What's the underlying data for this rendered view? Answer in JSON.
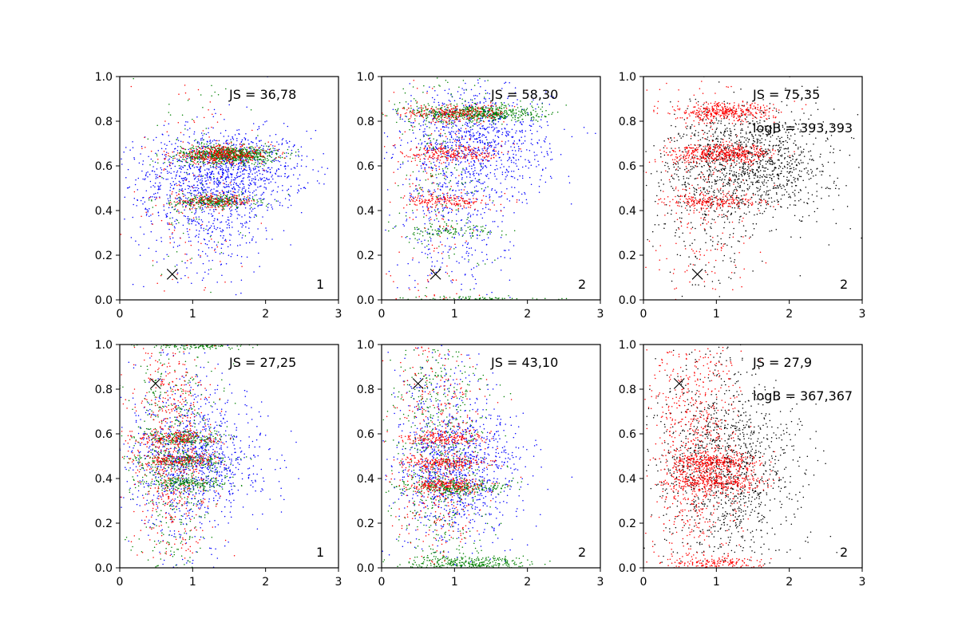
{
  "figure": {
    "rows": 2,
    "cols": 3,
    "xlim": [
      0,
      3
    ],
    "ylim": [
      0,
      1
    ],
    "xticks": [
      0,
      1,
      2,
      3
    ],
    "yticks": [
      0.0,
      0.2,
      0.4,
      0.6,
      0.8,
      1.0
    ],
    "xtick_labels": [
      "0",
      "1",
      "2",
      "3"
    ],
    "ytick_labels": [
      "0.0",
      "0.2",
      "0.4",
      "0.6",
      "0.8",
      "1.0"
    ],
    "colors": {
      "blue": "#0000ff",
      "green": "#008000",
      "red": "#ff0000",
      "black": "#000000"
    }
  },
  "chart_data": [
    {
      "type": "scatter",
      "panel": [
        0,
        0
      ],
      "xlim": [
        0,
        3
      ],
      "ylim": [
        0,
        1
      ],
      "grid": false,
      "annotations": {
        "js": "JS = 36,78",
        "panel_number": "1"
      },
      "marker": {
        "shape": "x",
        "x": 0.72,
        "y": 0.115
      },
      "series": [
        {
          "color": "blue",
          "count": 1500,
          "bands": [
            {
              "y": 0.58,
              "spread_y": 0.09,
              "x": 1.5,
              "spread_x": 0.55,
              "weight": 0.55
            },
            {
              "y": 0.45,
              "spread_y": 0.16,
              "x": 1.2,
              "spread_x": 0.5,
              "weight": 0.45
            }
          ]
        },
        {
          "color": "green",
          "count": 1100,
          "bands": [
            {
              "y": 0.65,
              "spread_y": 0.02,
              "x": 1.5,
              "spread_x": 0.33,
              "weight": 0.65
            },
            {
              "y": 0.44,
              "spread_y": 0.015,
              "x": 1.3,
              "spread_x": 0.28,
              "weight": 0.25
            },
            {
              "y": 0.55,
              "spread_y": 0.25,
              "x": 1.0,
              "spread_x": 0.4,
              "weight": 0.1
            }
          ]
        },
        {
          "color": "red",
          "count": 650,
          "bands": [
            {
              "y": 0.65,
              "spread_y": 0.02,
              "x": 1.4,
              "spread_x": 0.35,
              "weight": 0.55
            },
            {
              "y": 0.44,
              "spread_y": 0.015,
              "x": 1.3,
              "spread_x": 0.3,
              "weight": 0.25
            },
            {
              "y": 0.5,
              "spread_y": 0.3,
              "x": 0.9,
              "spread_x": 0.4,
              "weight": 0.2
            }
          ]
        }
      ]
    },
    {
      "type": "scatter",
      "panel": [
        0,
        1
      ],
      "xlim": [
        0,
        3
      ],
      "ylim": [
        0,
        1
      ],
      "grid": false,
      "annotations": {
        "js": "JS = 58,30",
        "panel_number": "2"
      },
      "marker": {
        "shape": "x",
        "x": 0.74,
        "y": 0.115
      },
      "series": [
        {
          "color": "blue",
          "count": 1300,
          "bands": [
            {
              "y": 0.7,
              "spread_y": 0.13,
              "x": 1.3,
              "spread_x": 0.5,
              "weight": 0.7
            },
            {
              "y": 0.4,
              "spread_y": 0.2,
              "x": 1.0,
              "spread_x": 0.4,
              "weight": 0.3
            }
          ]
        },
        {
          "color": "green",
          "count": 1100,
          "bands": [
            {
              "y": 0.835,
              "spread_y": 0.02,
              "x": 1.3,
              "spread_x": 0.45,
              "weight": 0.55
            },
            {
              "y": 0.0,
              "spread_y": 0.008,
              "x": 1.2,
              "spread_x": 0.45,
              "weight": 0.15
            },
            {
              "y": 0.31,
              "spread_y": 0.015,
              "x": 0.9,
              "spread_x": 0.35,
              "weight": 0.1
            },
            {
              "y": 0.6,
              "spread_y": 0.25,
              "x": 0.8,
              "spread_x": 0.35,
              "weight": 0.2
            }
          ]
        },
        {
          "color": "red",
          "count": 800,
          "bands": [
            {
              "y": 0.835,
              "spread_y": 0.02,
              "x": 1.0,
              "spread_x": 0.35,
              "weight": 0.3
            },
            {
              "y": 0.655,
              "spread_y": 0.02,
              "x": 1.0,
              "spread_x": 0.35,
              "weight": 0.3
            },
            {
              "y": 0.44,
              "spread_y": 0.015,
              "x": 0.9,
              "spread_x": 0.3,
              "weight": 0.2
            },
            {
              "y": 0.5,
              "spread_y": 0.3,
              "x": 0.7,
              "spread_x": 0.3,
              "weight": 0.2
            }
          ]
        }
      ]
    },
    {
      "type": "scatter",
      "panel": [
        0,
        2
      ],
      "xlim": [
        0,
        3
      ],
      "ylim": [
        0,
        1
      ],
      "grid": false,
      "annotations": {
        "js": "JS = 75,35",
        "logb": "logB = 393,393",
        "panel_number": "2"
      },
      "marker": {
        "shape": "x",
        "x": 0.74,
        "y": 0.115
      },
      "series": [
        {
          "color": "black",
          "count": 1500,
          "bands": [
            {
              "y": 0.62,
              "spread_y": 0.12,
              "x": 1.5,
              "spread_x": 0.55,
              "weight": 0.75
            },
            {
              "y": 0.45,
              "spread_y": 0.2,
              "x": 1.0,
              "spread_x": 0.45,
              "weight": 0.25
            }
          ]
        },
        {
          "color": "red",
          "count": 1300,
          "bands": [
            {
              "y": 0.84,
              "spread_y": 0.02,
              "x": 1.1,
              "spread_x": 0.35,
              "weight": 0.3
            },
            {
              "y": 0.655,
              "spread_y": 0.02,
              "x": 1.1,
              "spread_x": 0.35,
              "weight": 0.35
            },
            {
              "y": 0.44,
              "spread_y": 0.015,
              "x": 1.0,
              "spread_x": 0.35,
              "weight": 0.15
            },
            {
              "y": 0.45,
              "spread_y": 0.3,
              "x": 0.8,
              "spread_x": 0.35,
              "weight": 0.2
            }
          ]
        }
      ]
    },
    {
      "type": "scatter",
      "panel": [
        1,
        0
      ],
      "xlim": [
        0,
        3
      ],
      "ylim": [
        0,
        1
      ],
      "grid": false,
      "annotations": {
        "js": "JS = 27,25",
        "panel_number": "1"
      },
      "marker": {
        "shape": "x",
        "x": 0.49,
        "y": 0.825
      },
      "series": [
        {
          "color": "blue",
          "count": 1200,
          "bands": [
            {
              "y": 0.48,
              "spread_y": 0.12,
              "x": 1.1,
              "spread_x": 0.45,
              "weight": 0.6
            },
            {
              "y": 0.5,
              "spread_y": 0.28,
              "x": 0.9,
              "spread_x": 0.4,
              "weight": 0.4
            }
          ]
        },
        {
          "color": "green",
          "count": 1300,
          "bands": [
            {
              "y": 1.0,
              "spread_y": 0.01,
              "x": 1.0,
              "spread_x": 0.35,
              "weight": 0.15
            },
            {
              "y": 0.58,
              "spread_y": 0.015,
              "x": 0.9,
              "spread_x": 0.3,
              "weight": 0.15
            },
            {
              "y": 0.48,
              "spread_y": 0.015,
              "x": 0.9,
              "spread_x": 0.3,
              "weight": 0.15
            },
            {
              "y": 0.38,
              "spread_y": 0.015,
              "x": 0.9,
              "spread_x": 0.3,
              "weight": 0.15
            },
            {
              "y": 0.5,
              "spread_y": 0.3,
              "x": 0.75,
              "spread_x": 0.3,
              "weight": 0.4
            }
          ]
        },
        {
          "color": "red",
          "count": 900,
          "bands": [
            {
              "y": 0.58,
              "spread_y": 0.015,
              "x": 0.8,
              "spread_x": 0.3,
              "weight": 0.15
            },
            {
              "y": 0.48,
              "spread_y": 0.015,
              "x": 0.8,
              "spread_x": 0.3,
              "weight": 0.15
            },
            {
              "y": 0.5,
              "spread_y": 0.3,
              "x": 0.7,
              "spread_x": 0.28,
              "weight": 0.7
            }
          ]
        }
      ]
    },
    {
      "type": "scatter",
      "panel": [
        1,
        1
      ],
      "xlim": [
        0,
        3
      ],
      "ylim": [
        0,
        1
      ],
      "grid": false,
      "annotations": {
        "js": "JS = 43,10",
        "panel_number": "2"
      },
      "marker": {
        "shape": "x",
        "x": 0.5,
        "y": 0.825
      },
      "series": [
        {
          "color": "blue",
          "count": 1200,
          "bands": [
            {
              "y": 0.45,
              "spread_y": 0.14,
              "x": 1.1,
              "spread_x": 0.45,
              "weight": 0.6
            },
            {
              "y": 0.5,
              "spread_y": 0.28,
              "x": 0.9,
              "spread_x": 0.4,
              "weight": 0.4
            }
          ]
        },
        {
          "color": "green",
          "count": 1200,
          "bands": [
            {
              "y": 0.02,
              "spread_y": 0.015,
              "x": 1.2,
              "spread_x": 0.4,
              "weight": 0.25
            },
            {
              "y": 0.36,
              "spread_y": 0.015,
              "x": 1.0,
              "spread_x": 0.35,
              "weight": 0.2
            },
            {
              "y": 0.5,
              "spread_y": 0.3,
              "x": 0.8,
              "spread_x": 0.35,
              "weight": 0.55
            }
          ]
        },
        {
          "color": "red",
          "count": 1000,
          "bands": [
            {
              "y": 0.58,
              "spread_y": 0.015,
              "x": 0.9,
              "spread_x": 0.3,
              "weight": 0.15
            },
            {
              "y": 0.47,
              "spread_y": 0.015,
              "x": 0.9,
              "spread_x": 0.3,
              "weight": 0.2
            },
            {
              "y": 0.37,
              "spread_y": 0.015,
              "x": 0.9,
              "spread_x": 0.3,
              "weight": 0.2
            },
            {
              "y": 0.5,
              "spread_y": 0.3,
              "x": 0.75,
              "spread_x": 0.3,
              "weight": 0.45
            }
          ]
        }
      ]
    },
    {
      "type": "scatter",
      "panel": [
        1,
        2
      ],
      "xlim": [
        0,
        3
      ],
      "ylim": [
        0,
        1
      ],
      "grid": false,
      "annotations": {
        "js": "JS = 27,9",
        "logb": "logB = 367,367",
        "panel_number": "2"
      },
      "marker": {
        "shape": "x",
        "x": 0.49,
        "y": 0.825
      },
      "series": [
        {
          "color": "black",
          "count": 1300,
          "bands": [
            {
              "y": 0.45,
              "spread_y": 0.2,
              "x": 1.2,
              "spread_x": 0.5,
              "weight": 0.7
            },
            {
              "y": 0.5,
              "spread_y": 0.3,
              "x": 0.9,
              "spread_x": 0.4,
              "weight": 0.3
            }
          ]
        },
        {
          "color": "red",
          "count": 1600,
          "bands": [
            {
              "y": 0.47,
              "spread_y": 0.02,
              "x": 1.0,
              "spread_x": 0.32,
              "weight": 0.2
            },
            {
              "y": 0.38,
              "spread_y": 0.02,
              "x": 1.0,
              "spread_x": 0.32,
              "weight": 0.2
            },
            {
              "y": 0.02,
              "spread_y": 0.015,
              "x": 1.0,
              "spread_x": 0.3,
              "weight": 0.1
            },
            {
              "y": 0.5,
              "spread_y": 0.3,
              "x": 0.7,
              "spread_x": 0.3,
              "weight": 0.5
            }
          ]
        }
      ]
    }
  ]
}
